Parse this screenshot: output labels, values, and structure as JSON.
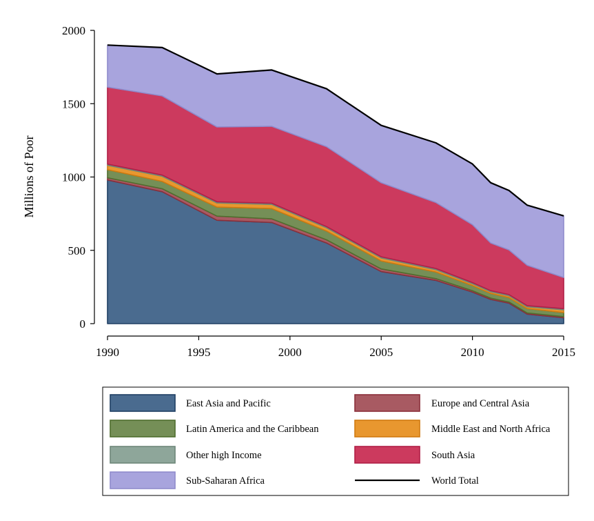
{
  "chart_data": {
    "type": "area",
    "stacked": true,
    "ylabel": "Millions of Poor",
    "xlabel": "",
    "xlim": [
      1990,
      2015
    ],
    "ylim": [
      0,
      2000
    ],
    "xticks": [
      1990,
      1995,
      2000,
      2005,
      2010,
      2015
    ],
    "yticks": [
      0,
      500,
      1000,
      1500,
      2000
    ],
    "grid": false,
    "legend_position": "bottom",
    "x": [
      1990,
      1993,
      1996,
      1999,
      2002,
      2005,
      2008,
      2010,
      2011,
      2012,
      2013,
      2015
    ],
    "series": [
      {
        "name": "East Asia and Pacific",
        "color": "#4a6b8f",
        "stroke": "#1f3f63",
        "values": [
          980,
          900,
          705,
          690,
          550,
          355,
          295,
          215,
          165,
          140,
          65,
          40
        ]
      },
      {
        "name": "Europe and Central Asia",
        "color": "#a85a62",
        "stroke": "#8b2f3a",
        "values": [
          15,
          20,
          28,
          25,
          22,
          18,
          12,
          10,
          9,
          8,
          8,
          8
        ]
      },
      {
        "name": "Latin America and the Caribbean",
        "color": "#758f57",
        "stroke": "#4f6e2e",
        "values": [
          55,
          50,
          62,
          70,
          60,
          55,
          45,
          35,
          32,
          30,
          30,
          28
        ]
      },
      {
        "name": "Middle East and North Africa",
        "color": "#e8972f",
        "stroke": "#d07a10",
        "values": [
          30,
          35,
          28,
          28,
          22,
          20,
          16,
          12,
          11,
          12,
          12,
          18
        ]
      },
      {
        "name": "Other high Income",
        "color": "#8ea69a",
        "stroke": "#6d8779",
        "values": [
          8,
          8,
          8,
          8,
          8,
          8,
          8,
          8,
          8,
          8,
          8,
          8
        ]
      },
      {
        "name": "South Asia",
        "color": "#cc3a5e",
        "stroke": "#b01e46",
        "values": [
          525,
          540,
          510,
          525,
          545,
          505,
          450,
          395,
          325,
          305,
          275,
          213
        ]
      },
      {
        "name": "Sub-Saharan Africa",
        "color": "#a8a4dd",
        "stroke": "#8f8bcc",
        "values": [
          287,
          330,
          362,
          384,
          395,
          391,
          407,
          414,
          411,
          405,
          410,
          420
        ]
      }
    ],
    "world_total": {
      "name": "World Total",
      "color": "#000000",
      "values": [
        1900,
        1883,
        1703,
        1730,
        1602,
        1352,
        1233,
        1089,
        961,
        908,
        808,
        735
      ]
    }
  }
}
